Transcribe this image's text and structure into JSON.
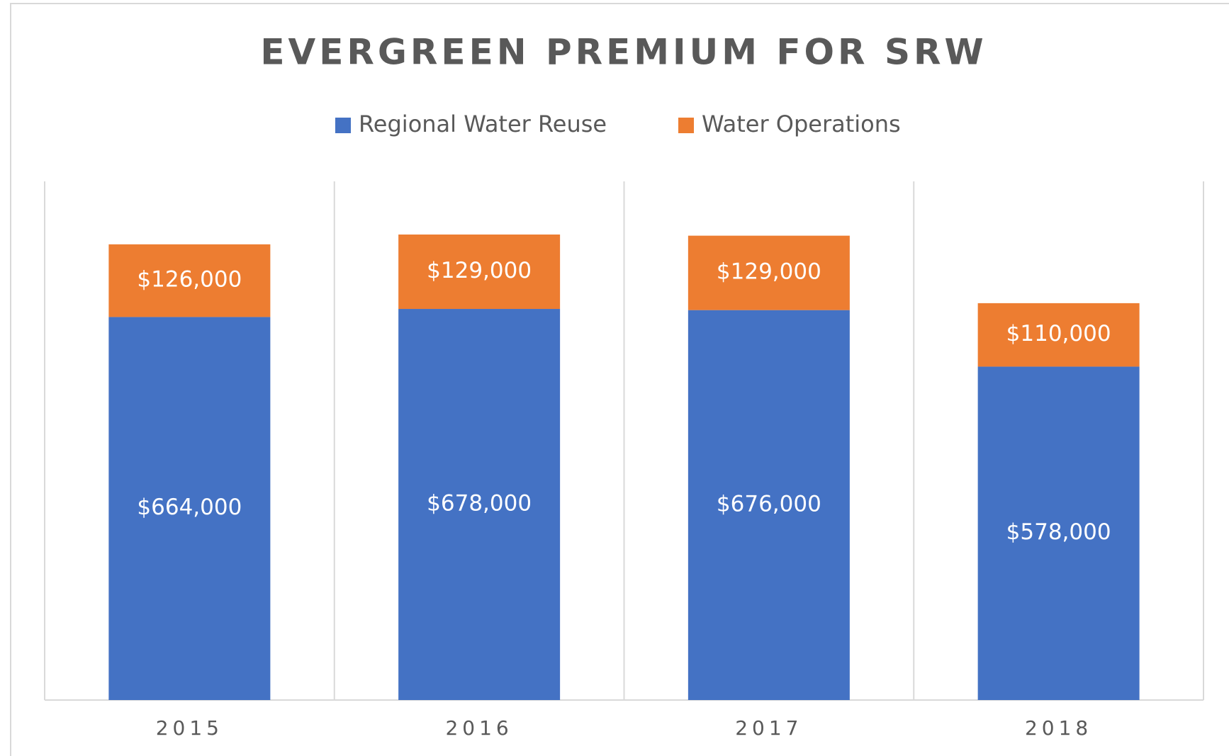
{
  "chart_data": {
    "type": "stacked_bar",
    "title": "EVERGREEN  PREMIUM FOR SRW",
    "categories": [
      "2015",
      "2016",
      "2017",
      "2018"
    ],
    "series": [
      {
        "name": "Regional Water Reuse",
        "color": "#4472c4",
        "values": [
          664000,
          678000,
          676000,
          578000
        ],
        "value_labels": [
          "$664,000",
          "$678,000",
          "$676,000",
          "$578,000"
        ]
      },
      {
        "name": "Water Operations",
        "color": "#ed7d31",
        "values": [
          126000,
          129000,
          129000,
          110000
        ],
        "value_labels": [
          "$126,000",
          "$129,000",
          "$129,000",
          "$110,000"
        ]
      }
    ],
    "legend": "top"
  }
}
